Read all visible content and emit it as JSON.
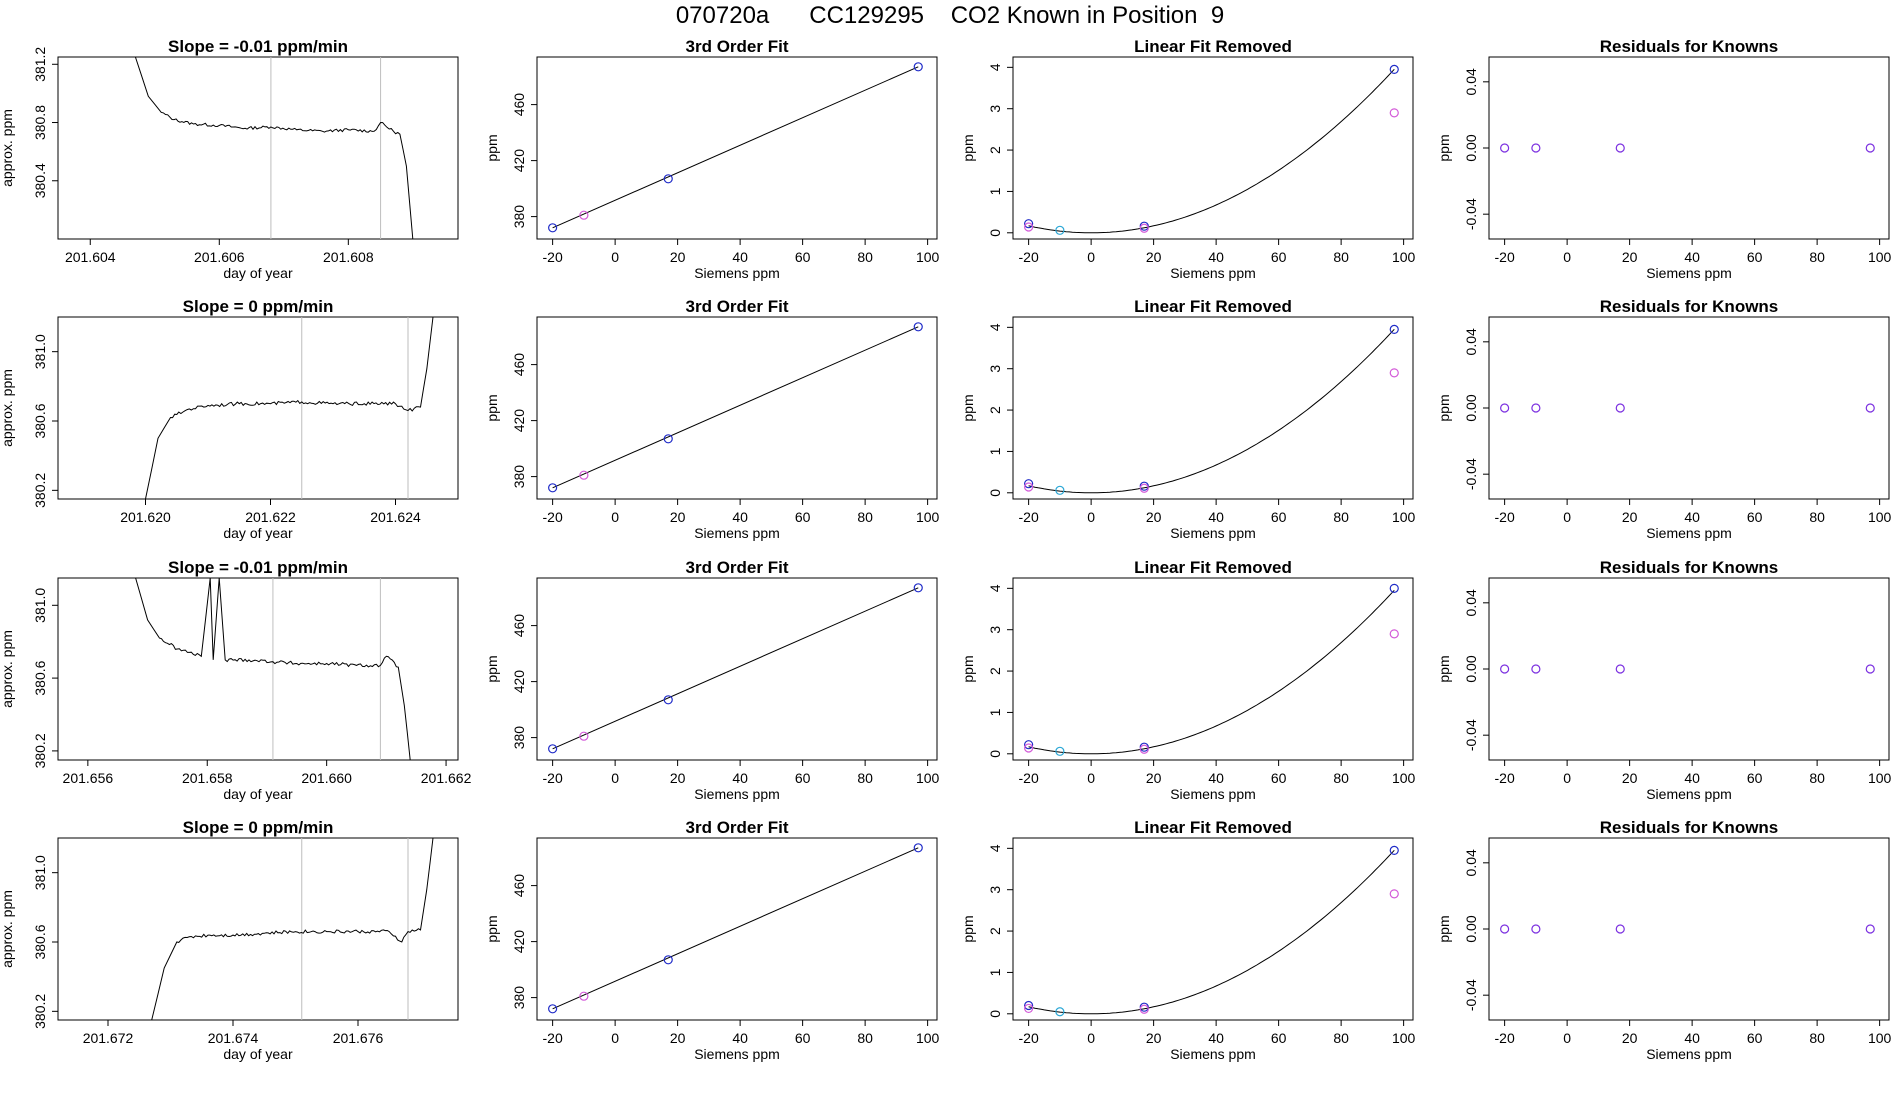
{
  "title": "070720a      CC129295    CO2 Known in Position  9",
  "colors": {
    "line": "#000000",
    "vline": "#bebebe",
    "point_blue": "#1f2bc8",
    "point_cyan": "#2aa7d6",
    "point_magenta": "#d35ad8",
    "point_purple": "#7b2fe0"
  },
  "chart_data": [
    {
      "type": "line",
      "row": 0,
      "col": 0,
      "title": "Slope =  -0.01  ppm/min",
      "xlabel": "day of year",
      "ylabel": "approx. ppm",
      "xlim": [
        201.6035,
        201.6097
      ],
      "ylim": [
        380.0,
        381.25
      ],
      "xticks": [
        "201.604",
        "201.606",
        "201.608"
      ],
      "xtick_values": [
        201.604,
        201.606,
        201.608
      ],
      "yticks": [
        "380.4",
        "380.8",
        "381.2"
      ],
      "ytick_values": [
        380.4,
        380.8,
        381.2
      ],
      "vlines": [
        201.6068,
        201.6085
      ],
      "x": [
        201.6047,
        201.6049,
        201.6051,
        201.6053,
        201.6056,
        201.606,
        201.6064,
        201.6068,
        201.6072,
        201.6076,
        201.608,
        201.6084,
        201.6085,
        201.6087,
        201.6088,
        201.6089,
        201.609
      ],
      "y": [
        381.25,
        380.98,
        380.87,
        380.82,
        380.79,
        380.78,
        380.76,
        380.77,
        380.75,
        380.74,
        380.75,
        380.74,
        380.8,
        380.74,
        380.72,
        380.5,
        380.0
      ]
    },
    {
      "type": "scatter",
      "row": 0,
      "col": 1,
      "title": "3rd Order Fit",
      "xlabel": "Siemens ppm",
      "ylabel": "ppm",
      "xlim": [
        -25,
        103
      ],
      "ylim": [
        364,
        494
      ],
      "xticks": [
        "-20",
        "0",
        "20",
        "40",
        "60",
        "80",
        "100"
      ],
      "xtick_values": [
        -20,
        0,
        20,
        40,
        60,
        80,
        100
      ],
      "yticks": [
        "380",
        "420",
        "460"
      ],
      "ytick_values": [
        380,
        420,
        460
      ],
      "fit": {
        "x": [
          -20,
          97
        ],
        "y": [
          372,
          487
        ]
      },
      "points": {
        "x": [
          -20,
          -10,
          17,
          97
        ],
        "y": [
          372,
          381,
          407,
          487
        ],
        "c": [
          "point_blue",
          "point_magenta",
          "point_blue",
          "point_blue"
        ]
      }
    },
    {
      "type": "scatter",
      "row": 0,
      "col": 2,
      "title": "Linear Fit Removed",
      "xlabel": "Siemens ppm",
      "ylabel": "ppm",
      "xlim": [
        -25,
        103
      ],
      "ylim": [
        -0.15,
        4.25
      ],
      "xticks": [
        "-20",
        "0",
        "20",
        "40",
        "60",
        "80",
        "100"
      ],
      "xtick_values": [
        -20,
        0,
        20,
        40,
        60,
        80,
        100
      ],
      "yticks": [
        "0",
        "1",
        "2",
        "3",
        "4"
      ],
      "ytick_values": [
        0,
        1,
        2,
        3,
        4
      ],
      "curve": {
        "a": 0.00042,
        "x0": 0,
        "from": -20,
        "to": 97
      },
      "points": {
        "x": [
          -20,
          -20,
          -10,
          17,
          17,
          97,
          97
        ],
        "y": [
          0.22,
          0.14,
          0.06,
          0.16,
          0.11,
          3.95,
          2.9
        ],
        "c": [
          "point_blue",
          "point_magenta",
          "point_cyan",
          "point_blue",
          "point_magenta",
          "point_blue",
          "point_magenta"
        ]
      }
    },
    {
      "type": "scatter",
      "row": 0,
      "col": 3,
      "title": "Residuals for Knowns",
      "xlabel": "Siemens ppm",
      "ylabel": "ppm",
      "xlim": [
        -25,
        103
      ],
      "ylim": [
        -0.055,
        0.055
      ],
      "xticks": [
        "-20",
        "0",
        "20",
        "40",
        "60",
        "80",
        "100"
      ],
      "xtick_values": [
        -20,
        0,
        20,
        40,
        60,
        80,
        100
      ],
      "yticks": [
        "-0.04",
        "0.00",
        "0.04"
      ],
      "ytick_values": [
        -0.04,
        0.0,
        0.04
      ],
      "points": {
        "x": [
          -20,
          -10,
          17,
          97
        ],
        "y": [
          0,
          0,
          0,
          0
        ],
        "c": [
          "point_purple",
          "point_purple",
          "point_purple",
          "point_purple"
        ]
      }
    },
    {
      "type": "line",
      "row": 1,
      "col": 0,
      "title": "Slope =  0  ppm/min",
      "xlabel": "day of year",
      "ylabel": "approx. ppm",
      "xlim": [
        201.6186,
        201.625
      ],
      "ylim": [
        380.15,
        381.2
      ],
      "xticks": [
        "201.620",
        "201.622",
        "201.624"
      ],
      "xtick_values": [
        201.62,
        201.622,
        201.624
      ],
      "yticks": [
        "380.2",
        "380.6",
        "381.0"
      ],
      "ytick_values": [
        380.2,
        380.6,
        381.0
      ],
      "vlines": [
        201.6225,
        201.6242
      ],
      "x": [
        201.62,
        201.6202,
        201.6204,
        201.6207,
        201.621,
        201.6215,
        201.622,
        201.6225,
        201.623,
        201.6235,
        201.624,
        201.6242,
        201.6244,
        201.6245,
        201.6246
      ],
      "y": [
        380.15,
        380.5,
        380.62,
        380.67,
        380.69,
        380.7,
        380.7,
        380.71,
        380.7,
        380.7,
        380.7,
        380.66,
        380.68,
        380.9,
        381.2
      ]
    },
    {
      "type": "scatter",
      "row": 1,
      "col": 1,
      "title": "3rd Order Fit",
      "xlabel": "Siemens ppm",
      "ylabel": "ppm",
      "xlim": [
        -25,
        103
      ],
      "ylim": [
        364,
        494
      ],
      "xticks": [
        "-20",
        "0",
        "20",
        "40",
        "60",
        "80",
        "100"
      ],
      "xtick_values": [
        -20,
        0,
        20,
        40,
        60,
        80,
        100
      ],
      "yticks": [
        "380",
        "420",
        "460"
      ],
      "ytick_values": [
        380,
        420,
        460
      ],
      "fit": {
        "x": [
          -20,
          97
        ],
        "y": [
          372,
          487
        ]
      },
      "points": {
        "x": [
          -20,
          -10,
          17,
          97
        ],
        "y": [
          372,
          381,
          407,
          487
        ],
        "c": [
          "point_blue",
          "point_magenta",
          "point_blue",
          "point_blue"
        ]
      }
    },
    {
      "type": "scatter",
      "row": 1,
      "col": 2,
      "title": "Linear Fit Removed",
      "xlabel": "Siemens ppm",
      "ylabel": "ppm",
      "xlim": [
        -25,
        103
      ],
      "ylim": [
        -0.15,
        4.25
      ],
      "xticks": [
        "-20",
        "0",
        "20",
        "40",
        "60",
        "80",
        "100"
      ],
      "xtick_values": [
        -20,
        0,
        20,
        40,
        60,
        80,
        100
      ],
      "yticks": [
        "0",
        "1",
        "2",
        "3",
        "4"
      ],
      "ytick_values": [
        0,
        1,
        2,
        3,
        4
      ],
      "curve": {
        "a": 0.00042,
        "x0": 0,
        "from": -20,
        "to": 97
      },
      "points": {
        "x": [
          -20,
          -20,
          -10,
          17,
          17,
          97,
          97
        ],
        "y": [
          0.22,
          0.14,
          0.06,
          0.16,
          0.11,
          3.95,
          2.9
        ],
        "c": [
          "point_blue",
          "point_magenta",
          "point_cyan",
          "point_blue",
          "point_magenta",
          "point_blue",
          "point_magenta"
        ]
      }
    },
    {
      "type": "scatter",
      "row": 1,
      "col": 3,
      "title": "Residuals for Knowns",
      "xlabel": "Siemens ppm",
      "ylabel": "ppm",
      "xlim": [
        -25,
        103
      ],
      "ylim": [
        -0.055,
        0.055
      ],
      "xticks": [
        "-20",
        "0",
        "20",
        "40",
        "60",
        "80",
        "100"
      ],
      "xtick_values": [
        -20,
        0,
        20,
        40,
        60,
        80,
        100
      ],
      "yticks": [
        "-0.04",
        "0.00",
        "0.04"
      ],
      "ytick_values": [
        -0.04,
        0.0,
        0.04
      ],
      "points": {
        "x": [
          -20,
          -10,
          17,
          97
        ],
        "y": [
          0,
          0,
          0,
          0
        ],
        "c": [
          "point_purple",
          "point_purple",
          "point_purple",
          "point_purple"
        ]
      }
    },
    {
      "type": "line",
      "row": 2,
      "col": 0,
      "title": "Slope =  -0.01  ppm/min",
      "xlabel": "day of year",
      "ylabel": "approx. ppm",
      "xlim": [
        201.6555,
        201.6622
      ],
      "ylim": [
        380.15,
        381.15
      ],
      "xticks": [
        "201.656",
        "201.658",
        "201.660",
        "201.662"
      ],
      "xtick_values": [
        201.656,
        201.658,
        201.66,
        201.662
      ],
      "yticks": [
        "380.2",
        "380.6",
        "381.0"
      ],
      "ytick_values": [
        380.2,
        380.6,
        381.0
      ],
      "vlines": [
        201.6591,
        201.6609
      ],
      "x": [
        201.6568,
        201.657,
        201.6572,
        201.6575,
        201.6579,
        201.65805,
        201.6581,
        201.6582,
        201.6583,
        201.6587,
        201.6591,
        201.6595,
        201.66,
        201.6605,
        201.6609,
        201.661,
        201.6612,
        201.6613,
        201.6614
      ],
      "y": [
        381.15,
        380.92,
        380.82,
        380.76,
        380.72,
        381.15,
        380.7,
        381.15,
        380.7,
        380.7,
        380.69,
        380.68,
        380.68,
        380.67,
        380.67,
        380.72,
        380.66,
        380.45,
        380.15
      ]
    },
    {
      "type": "scatter",
      "row": 2,
      "col": 1,
      "title": "3rd Order Fit",
      "xlabel": "Siemens ppm",
      "ylabel": "ppm",
      "xlim": [
        -25,
        103
      ],
      "ylim": [
        364,
        494
      ],
      "xticks": [
        "-20",
        "0",
        "20",
        "40",
        "60",
        "80",
        "100"
      ],
      "xtick_values": [
        -20,
        0,
        20,
        40,
        60,
        80,
        100
      ],
      "yticks": [
        "380",
        "420",
        "460"
      ],
      "ytick_values": [
        380,
        420,
        460
      ],
      "fit": {
        "x": [
          -20,
          97
        ],
        "y": [
          372,
          487
        ]
      },
      "points": {
        "x": [
          -20,
          -10,
          17,
          97
        ],
        "y": [
          372,
          381,
          407,
          487
        ],
        "c": [
          "point_blue",
          "point_magenta",
          "point_blue",
          "point_blue"
        ]
      }
    },
    {
      "type": "scatter",
      "row": 2,
      "col": 2,
      "title": "Linear Fit Removed",
      "xlabel": "Siemens ppm",
      "ylabel": "ppm",
      "xlim": [
        -25,
        103
      ],
      "ylim": [
        -0.15,
        4.25
      ],
      "xticks": [
        "-20",
        "0",
        "20",
        "40",
        "60",
        "80",
        "100"
      ],
      "xtick_values": [
        -20,
        0,
        20,
        40,
        60,
        80,
        100
      ],
      "yticks": [
        "0",
        "1",
        "2",
        "3",
        "4"
      ],
      "ytick_values": [
        0,
        1,
        2,
        3,
        4
      ],
      "curve": {
        "a": 0.00042,
        "x0": 0,
        "from": -20,
        "to": 97
      },
      "points": {
        "x": [
          -20,
          -20,
          -10,
          17,
          17,
          97,
          97
        ],
        "y": [
          0.22,
          0.14,
          0.06,
          0.16,
          0.11,
          4.0,
          2.9
        ],
        "c": [
          "point_blue",
          "point_magenta",
          "point_cyan",
          "point_blue",
          "point_magenta",
          "point_blue",
          "point_magenta"
        ]
      }
    },
    {
      "type": "scatter",
      "row": 2,
      "col": 3,
      "title": "Residuals for Knowns",
      "xlabel": "Siemens ppm",
      "ylabel": "ppm",
      "xlim": [
        -25,
        103
      ],
      "ylim": [
        -0.055,
        0.055
      ],
      "xticks": [
        "-20",
        "0",
        "20",
        "40",
        "60",
        "80",
        "100"
      ],
      "xtick_values": [
        -20,
        0,
        20,
        40,
        60,
        80,
        100
      ],
      "yticks": [
        "-0.04",
        "0.00",
        "0.04"
      ],
      "ytick_values": [
        -0.04,
        0.0,
        0.04
      ],
      "points": {
        "x": [
          -20,
          -10,
          17,
          97
        ],
        "y": [
          0,
          0,
          0,
          0
        ],
        "c": [
          "point_purple",
          "point_purple",
          "point_purple",
          "point_purple"
        ]
      }
    },
    {
      "type": "line",
      "row": 3,
      "col": 0,
      "title": "Slope =  0  ppm/min",
      "xlabel": "day of year",
      "ylabel": "approx. ppm",
      "xlim": [
        201.6712,
        201.6776
      ],
      "ylim": [
        380.15,
        381.2
      ],
      "xticks": [
        "201.672",
        "201.674",
        "201.676"
      ],
      "xtick_values": [
        201.672,
        201.674,
        201.676
      ],
      "yticks": [
        "380.2",
        "380.6",
        "381.0"
      ],
      "ytick_values": [
        380.2,
        380.6,
        381.0
      ],
      "vlines": [
        201.6751,
        201.6768
      ],
      "x": [
        201.6727,
        201.6729,
        201.6731,
        201.6733,
        201.6736,
        201.674,
        201.6745,
        201.675,
        201.6755,
        201.676,
        201.6765,
        201.6767,
        201.6768,
        201.677,
        201.6771,
        201.6772
      ],
      "y": [
        380.15,
        380.45,
        380.6,
        380.63,
        380.64,
        380.64,
        380.65,
        380.66,
        380.66,
        380.66,
        380.66,
        380.6,
        380.66,
        380.67,
        380.9,
        381.2
      ]
    },
    {
      "type": "scatter",
      "row": 3,
      "col": 1,
      "title": "3rd Order Fit",
      "xlabel": "Siemens ppm",
      "ylabel": "ppm",
      "xlim": [
        -25,
        103
      ],
      "ylim": [
        364,
        494
      ],
      "xticks": [
        "-20",
        "0",
        "20",
        "40",
        "60",
        "80",
        "100"
      ],
      "xtick_values": [
        -20,
        0,
        20,
        40,
        60,
        80,
        100
      ],
      "yticks": [
        "380",
        "420",
        "460"
      ],
      "ytick_values": [
        380,
        420,
        460
      ],
      "fit": {
        "x": [
          -20,
          97
        ],
        "y": [
          372,
          487
        ]
      },
      "points": {
        "x": [
          -20,
          -10,
          17,
          97
        ],
        "y": [
          372,
          381,
          407,
          487
        ],
        "c": [
          "point_blue",
          "point_magenta",
          "point_blue",
          "point_blue"
        ]
      }
    },
    {
      "type": "scatter",
      "row": 3,
      "col": 2,
      "title": "Linear Fit Removed",
      "xlabel": "Siemens ppm",
      "ylabel": "ppm",
      "xlim": [
        -25,
        103
      ],
      "ylim": [
        -0.15,
        4.25
      ],
      "xticks": [
        "-20",
        "0",
        "20",
        "40",
        "60",
        "80",
        "100"
      ],
      "xtick_values": [
        -20,
        0,
        20,
        40,
        60,
        80,
        100
      ],
      "yticks": [
        "0",
        "1",
        "2",
        "3",
        "4"
      ],
      "ytick_values": [
        0,
        1,
        2,
        3,
        4
      ],
      "curve": {
        "a": 0.00042,
        "x0": 0,
        "from": -20,
        "to": 97
      },
      "points": {
        "x": [
          -20,
          -20,
          -10,
          17,
          17,
          97,
          97
        ],
        "y": [
          0.2,
          0.13,
          0.05,
          0.16,
          0.11,
          3.95,
          2.9
        ],
        "c": [
          "point_blue",
          "point_magenta",
          "point_cyan",
          "point_blue",
          "point_magenta",
          "point_blue",
          "point_magenta"
        ]
      }
    },
    {
      "type": "scatter",
      "row": 3,
      "col": 3,
      "title": "Residuals for Knowns",
      "xlabel": "Siemens ppm",
      "ylabel": "ppm",
      "xlim": [
        -25,
        103
      ],
      "ylim": [
        -0.055,
        0.055
      ],
      "xticks": [
        "-20",
        "0",
        "20",
        "40",
        "60",
        "80",
        "100"
      ],
      "xtick_values": [
        -20,
        0,
        20,
        40,
        60,
        80,
        100
      ],
      "yticks": [
        "-0.04",
        "0.00",
        "0.04"
      ],
      "ytick_values": [
        -0.04,
        0.0,
        0.04
      ],
      "points": {
        "x": [
          -20,
          -10,
          17,
          97
        ],
        "y": [
          0,
          0,
          0,
          0
        ],
        "c": [
          "point_purple",
          "point_purple",
          "point_purple",
          "point_purple"
        ]
      }
    }
  ]
}
